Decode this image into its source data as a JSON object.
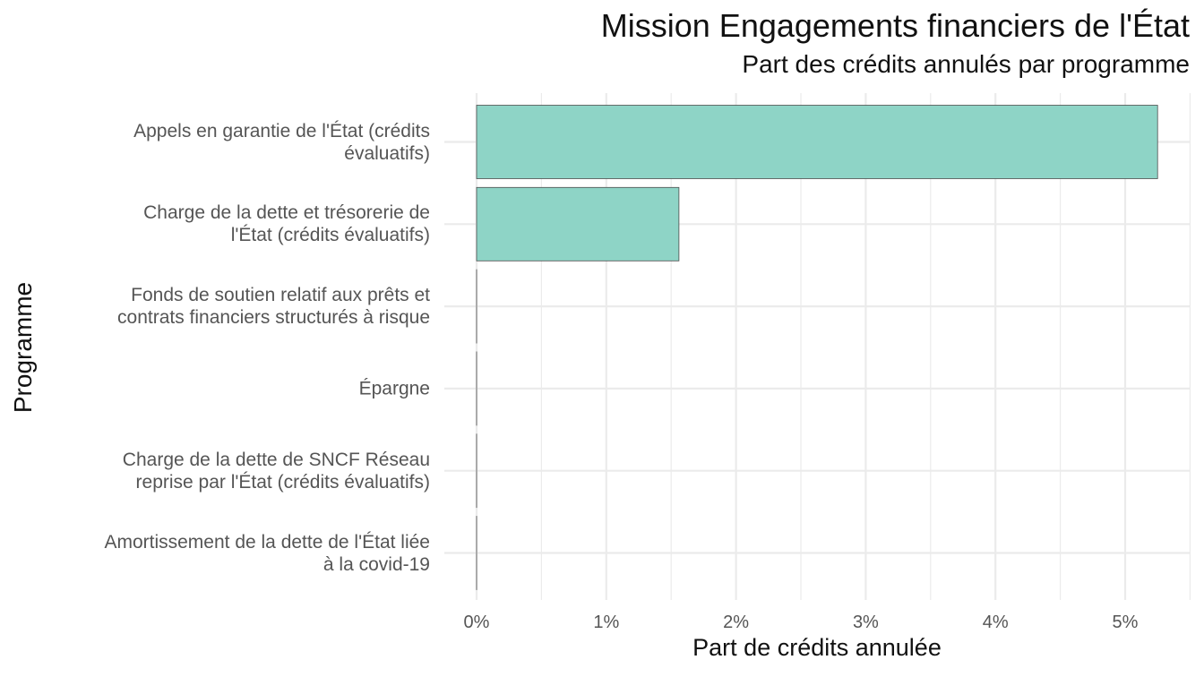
{
  "chart_data": {
    "type": "bar",
    "orientation": "horizontal",
    "title": "Mission Engagements financiers de l'État",
    "subtitle": "Part des crédits annulés par programme",
    "xlabel": "Part de crédits annulée",
    "ylabel": "Programme",
    "categories": [
      [
        "Appels en garantie de l'État (crédits",
        "évaluatifs)"
      ],
      [
        "Charge de la dette et trésorerie de",
        "l'État (crédits évaluatifs)"
      ],
      [
        "Fonds de soutien relatif aux prêts et",
        "contrats financiers structurés à risque"
      ],
      [
        "Épargne"
      ],
      [
        "Charge de la dette de SNCF Réseau",
        "reprise par l'État (crédits évaluatifs)"
      ],
      [
        "Amortissement de la dette de l'État liée",
        "à la covid-19"
      ]
    ],
    "values": [
      5.25,
      1.56,
      0,
      0,
      0,
      0
    ],
    "xlim": [
      0,
      5.5
    ],
    "xticks": [
      "0%",
      "1%",
      "2%",
      "3%",
      "4%",
      "5%"
    ],
    "grid": true,
    "bar_color": "#8ed4c6",
    "bar_outline": "#4d4d4d",
    "grid_color": "#ebebeb"
  }
}
